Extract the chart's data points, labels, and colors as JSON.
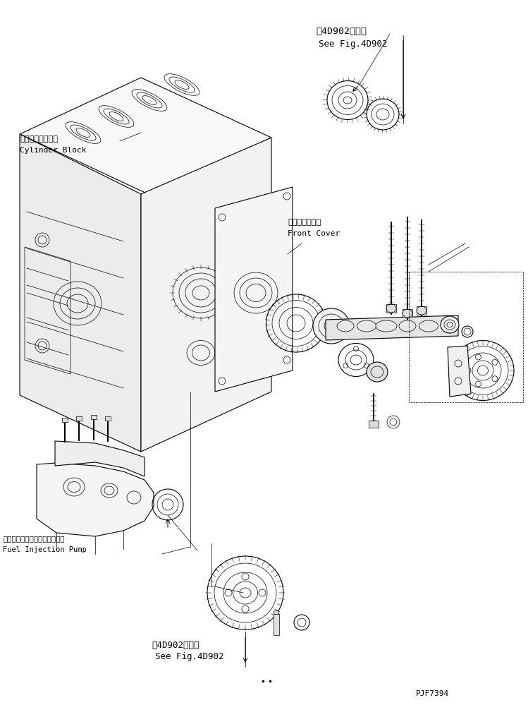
{
  "bg_color": "#ffffff",
  "line_color": "#000000",
  "fig_width": 7.49,
  "fig_height": 9.99,
  "dpi": 100,
  "title_text": "PJF7394",
  "labels": {
    "cylinder_block_jp": "シリンダブロック",
    "cylinder_block_en": "Cylinder Block",
    "front_cover_jp": "フロントカバー",
    "front_cover_en": "Front Cover",
    "fuel_pump_jp": "フェルインジェクションポンプ",
    "fuel_pump_en": "Fuel Injection Pump",
    "see_fig_jp_top": "第4D902図参照",
    "see_fig_en_top": "See Fig.4D902",
    "see_fig_jp_bot": "第4D902図参照",
    "see_fig_en_bot": "See Fig.4D902"
  },
  "font_size_label": 8,
  "font_size_small": 7,
  "font_size_ref": 8.5
}
